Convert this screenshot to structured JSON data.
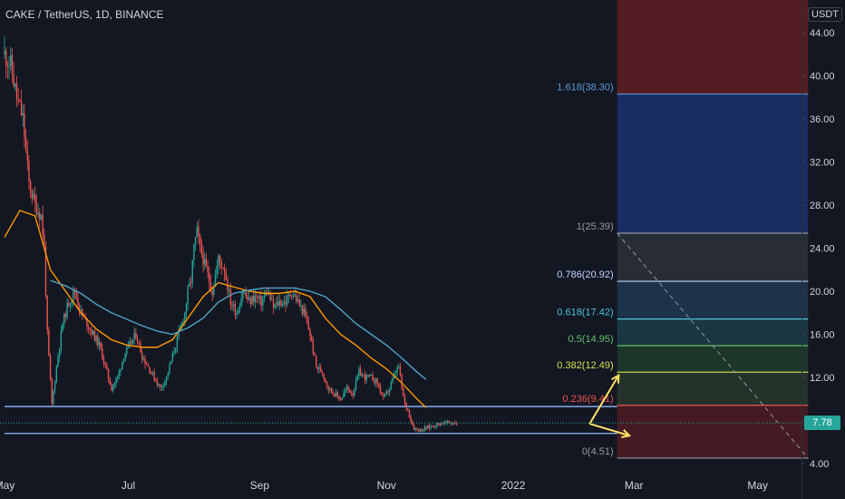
{
  "header": {
    "symbol_line": "CAKE / TetherUS, 1D, BINANCE",
    "unit_label": "USDT"
  },
  "current_price": "7.78",
  "colors": {
    "background": "#131722",
    "up": "#26a69a",
    "down": "#ef5350",
    "ema_fast": "#ff9800",
    "ema_slow": "#4fa3c7",
    "support_line": "#8fb8ff",
    "arrows": "#ffe066"
  },
  "chart_data": {
    "type": "candlestick",
    "title": "CAKE / TetherUS, 1D, BINANCE",
    "y_unit": "USDT",
    "y_ticks": [
      "44.00",
      "40.00",
      "36.00",
      "32.00",
      "28.00",
      "24.00",
      "20.00",
      "16.00",
      "12.00",
      "8.00",
      "4.00"
    ],
    "x_ticks": [
      "May",
      "Jul",
      "Sep",
      "Nov",
      "2022",
      "Mar",
      "May"
    ],
    "ylim": [
      4,
      44
    ],
    "grid": false,
    "price_path": {
      "days": [
        0,
        4,
        8,
        12,
        16,
        20,
        24,
        26,
        28,
        31,
        34,
        36,
        38,
        42,
        46,
        50,
        54,
        58,
        62,
        66,
        70,
        74,
        78,
        82,
        86,
        90,
        94,
        98,
        102,
        106,
        110,
        114,
        118,
        120,
        122,
        124,
        126,
        128,
        130,
        132,
        134,
        136,
        140,
        144,
        148,
        152,
        156,
        160,
        164,
        168,
        172,
        176,
        180,
        184,
        188,
        190,
        192,
        196,
        200,
        204,
        208,
        212,
        216,
        220,
        224,
        228,
        232,
        236,
        240,
        244,
        248,
        252,
        256,
        258,
        260,
        262,
        264,
        266,
        268,
        270,
        272,
        274,
        276,
        278,
        280,
        282,
        284,
        286,
        288,
        290,
        292,
        294,
        296
      ],
      "close": [
        42,
        41,
        38,
        36,
        30,
        28,
        27,
        24,
        16,
        9.5,
        13,
        15,
        17,
        19,
        20,
        18,
        17,
        16,
        15,
        13,
        11,
        12,
        14,
        15,
        16,
        14,
        13,
        12,
        11,
        12,
        14,
        16,
        18,
        20,
        21,
        24,
        25.5,
        24,
        23,
        22,
        21,
        20,
        23,
        22,
        19,
        18,
        20,
        19,
        19.5,
        19,
        20,
        18.5,
        19,
        19,
        20,
        19.5,
        19,
        18,
        16,
        13,
        12.5,
        11,
        10.5,
        10,
        11,
        10.5,
        12.5,
        12,
        12,
        11.5,
        10,
        11,
        12.5,
        13,
        11,
        9.5,
        9,
        8,
        7.3,
        7.2,
        7.1,
        7.2,
        7.3,
        7.4,
        7.5,
        7.6,
        7.7,
        7.75,
        7.8,
        7.75,
        7.8,
        7.78,
        7.78
      ]
    },
    "ema_fast": {
      "days": [
        0,
        10,
        20,
        30,
        40,
        50,
        60,
        70,
        80,
        90,
        100,
        110,
        120,
        130,
        140,
        150,
        160,
        170,
        180,
        190,
        200,
        210,
        220,
        230,
        240,
        250,
        260,
        270,
        276
      ],
      "values": [
        25,
        27.5,
        27,
        22,
        20,
        18,
        16.5,
        15.5,
        15,
        14.8,
        14.8,
        15.5,
        17.5,
        19.5,
        20.8,
        20.4,
        20,
        19.8,
        19.8,
        20,
        19.5,
        17.5,
        16,
        15,
        13.8,
        12.8,
        11.5,
        10,
        9.2
      ]
    },
    "ema_slow": {
      "days": [
        30,
        40,
        50,
        60,
        70,
        80,
        90,
        100,
        110,
        120,
        130,
        140,
        150,
        160,
        170,
        180,
        190,
        200,
        210,
        220,
        230,
        240,
        250,
        260,
        270,
        276
      ],
      "values": [
        21,
        20.5,
        19.8,
        18.8,
        18,
        17.4,
        16.8,
        16.3,
        16,
        16.6,
        17.5,
        19,
        19.8,
        20.1,
        20.3,
        20.3,
        20.3,
        20,
        19.5,
        18.3,
        17,
        16,
        15,
        13.8,
        12.5,
        11.8
      ]
    },
    "support_lines": [
      {
        "value": 9.3,
        "day_start": 0,
        "day_end": 401
      },
      {
        "value": 6.8,
        "day_start": 0,
        "day_end": 401
      }
    ],
    "fib_levels": [
      {
        "ratio": "1.618",
        "price": "38.30",
        "label": "1.618(38.30)",
        "color": "#5b9bd5"
      },
      {
        "ratio": "1",
        "price": "25.39",
        "label": "1(25.39)",
        "color": "#9598a1"
      },
      {
        "ratio": "0.786",
        "price": "20.92",
        "label": "0.786(20.92)",
        "color": "#bcd4ff"
      },
      {
        "ratio": "0.618",
        "price": "17.42",
        "label": "0.618(17.42)",
        "color": "#4dc3d9"
      },
      {
        "ratio": "0.5",
        "price": "14.95",
        "label": "0.5(14.95)",
        "color": "#66bb6a"
      },
      {
        "ratio": "0.382",
        "price": "12.49",
        "label": "0.382(12.49)",
        "color": "#d4e157"
      },
      {
        "ratio": "0.236",
        "price": "9.41",
        "label": "0.236(9.41)",
        "color": "#ef5350"
      },
      {
        "ratio": "0",
        "price": "4.51",
        "label": "0(4.51)",
        "color": "#9598a1"
      }
    ],
    "fib_zones": [
      {
        "from": 38.3,
        "to": 44,
        "color": "#5c1e24"
      },
      {
        "from": 25.39,
        "to": 38.3,
        "color": "#1b2f6b"
      },
      {
        "from": 20.92,
        "to": 25.39,
        "color": "#2b2f3a"
      },
      {
        "from": 17.42,
        "to": 20.92,
        "color": "#1f3550"
      },
      {
        "from": 14.95,
        "to": 17.42,
        "color": "#1c3b45"
      },
      {
        "from": 12.49,
        "to": 14.95,
        "color": "#1e3a2b"
      },
      {
        "from": 9.41,
        "to": 12.49,
        "color": "#26362a"
      },
      {
        "from": 4.51,
        "to": 9.41,
        "color": "#4a1c22"
      }
    ],
    "fib_range_days": [
      401,
      526
    ],
    "trend_line": {
      "from": [
        401,
        25.39
      ],
      "to": [
        526,
        4.51
      ],
      "style": "dashed"
    },
    "annotations": [
      {
        "type": "arrow",
        "from": [
          383,
          7.7
        ],
        "to": [
          402,
          12.2
        ]
      },
      {
        "type": "arrow",
        "from": [
          383,
          7.7
        ],
        "to": [
          409,
          6.6
        ]
      }
    ]
  }
}
